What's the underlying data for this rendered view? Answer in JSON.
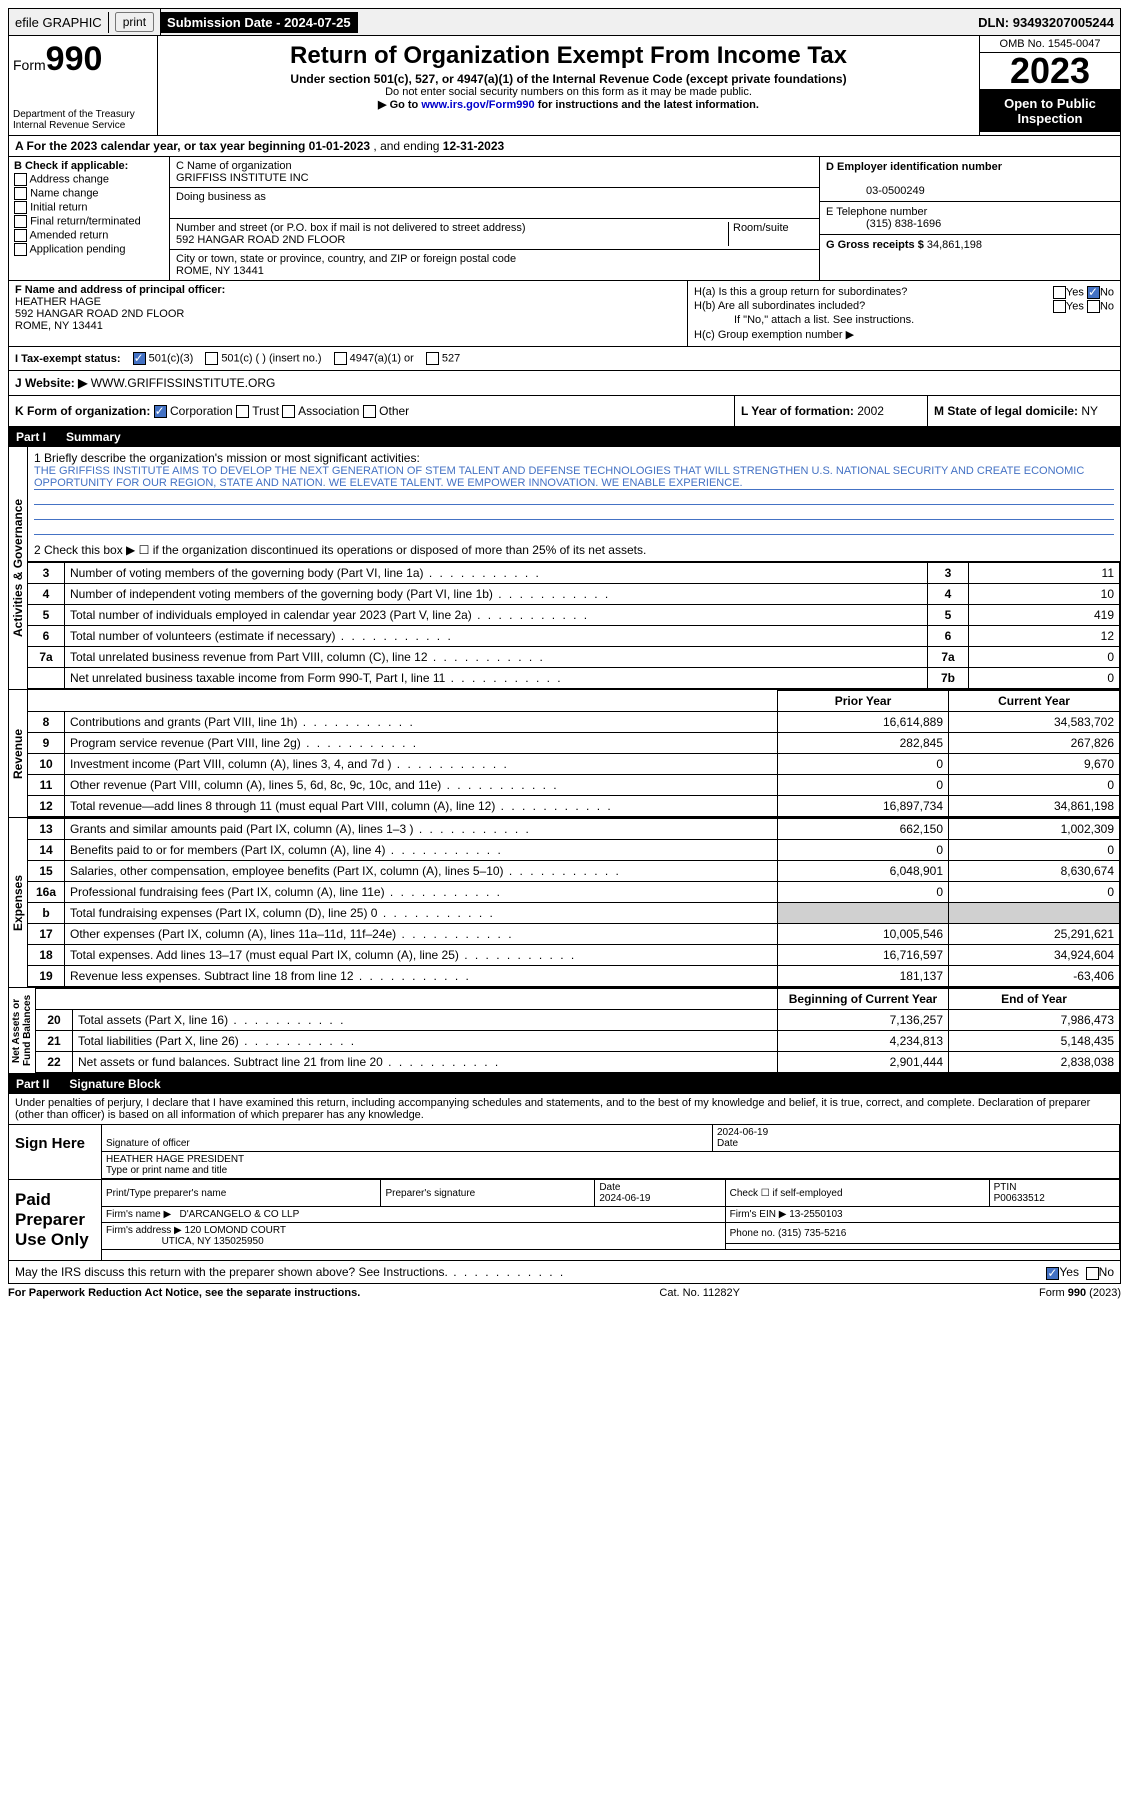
{
  "topbar": {
    "efile": "efile GRAPHIC",
    "print": "print",
    "sub_label": "Submission Date - ",
    "sub_date": "2024-07-25",
    "dln_label": "DLN: ",
    "dln": "93493207005244"
  },
  "header": {
    "form_word": "Form",
    "form_num": "990",
    "dept": "Department of the Treasury",
    "irs": "Internal Revenue Service",
    "title": "Return of Organization Exempt From Income Tax",
    "subtitle": "Under section 501(c), 527, or 4947(a)(1) of the Internal Revenue Code (except private foundations)",
    "ssn_note": "Do not enter social security numbers on this form as it may be made public.",
    "goto": "Go to ",
    "goto_link": "www.irs.gov/Form990",
    "goto_after": " for instructions and the latest information.",
    "omb": "OMB No. 1545-0047",
    "year": "2023",
    "inspection": "Open to Public Inspection"
  },
  "rowA": {
    "label": "A For the 2023 calendar year, or tax year beginning ",
    "begin": "01-01-2023",
    "mid": " , and ending ",
    "end": "12-31-2023"
  },
  "colB": {
    "header": "B Check if applicable:",
    "opts": [
      "Address change",
      "Name change",
      "Initial return",
      "Final return/terminated",
      "Amended return",
      "Application pending"
    ]
  },
  "colC": {
    "name_label": "C Name of organization",
    "name": "GRIFFISS INSTITUTE INC",
    "dba_label": "Doing business as",
    "dba": "",
    "street_label": "Number and street (or P.O. box if mail is not delivered to street address)",
    "street": "592 HANGAR ROAD 2ND FLOOR",
    "room_label": "Room/suite",
    "city_label": "City or town, state or province, country, and ZIP or foreign postal code",
    "city": "ROME, NY  13441"
  },
  "colD": {
    "ein_label": "D Employer identification number",
    "ein": "03-0500249",
    "tel_label": "E Telephone number",
    "tel": "(315) 838-1696",
    "gross_label": "G Gross receipts $ ",
    "gross": "34,861,198"
  },
  "colF": {
    "label": "F Name and address of principal officer:",
    "name": "HEATHER HAGE",
    "addr1": "592 HANGAR ROAD 2ND FLOOR",
    "addr2": "ROME, NY  13441"
  },
  "colH": {
    "ha": "H(a)  Is this a group return for subordinates?",
    "hb": "H(b)  Are all subordinates included?",
    "hb_note": "If \"No,\" attach a list. See instructions.",
    "hc": "H(c)  Group exemption number ▶",
    "yes": "Yes",
    "no": "No"
  },
  "rowI": {
    "label": "I    Tax-exempt status:",
    "opt1": "501(c)(3)",
    "opt2": "501(c) (   ) (insert no.)",
    "opt3": "4947(a)(1) or",
    "opt4": "527"
  },
  "rowJ": {
    "label": "J    Website: ▶",
    "value": "WWW.GRIFFISSINSTITUTE.ORG"
  },
  "rowK": {
    "label": "K Form of organization:",
    "opts": [
      "Corporation",
      "Trust",
      "Association",
      "Other"
    ]
  },
  "rowL": {
    "label": "L Year of formation: ",
    "value": "2002"
  },
  "rowM": {
    "label": "M State of legal domicile: ",
    "value": "NY"
  },
  "part1": {
    "label": "Part I",
    "title": "Summary"
  },
  "mission": {
    "q": "1   Briefly describe the organization's mission or most significant activities:",
    "text": "THE GRIFFISS INSTITUTE AIMS TO DEVELOP THE NEXT GENERATION OF STEM TALENT AND DEFENSE TECHNOLOGIES THAT WILL STRENGTHEN U.S. NATIONAL SECURITY AND CREATE ECONOMIC OPPORTUNITY FOR OUR REGION, STATE AND NATION. WE ELEVATE TALENT. WE EMPOWER INNOVATION. WE ENABLE EXPERIENCE.",
    "q2": "2   Check this box ▶ ☐ if the organization discontinued its operations or disposed of more than 25% of its net assets."
  },
  "gov_rows": [
    {
      "n": "3",
      "desc": "Number of voting members of the governing body (Part VI, line 1a)",
      "box": "3",
      "val": "11"
    },
    {
      "n": "4",
      "desc": "Number of independent voting members of the governing body (Part VI, line 1b)",
      "box": "4",
      "val": "10"
    },
    {
      "n": "5",
      "desc": "Total number of individuals employed in calendar year 2023 (Part V, line 2a)",
      "box": "5",
      "val": "419"
    },
    {
      "n": "6",
      "desc": "Total number of volunteers (estimate if necessary)",
      "box": "6",
      "val": "12"
    },
    {
      "n": "7a",
      "desc": "Total unrelated business revenue from Part VIII, column (C), line 12",
      "box": "7a",
      "val": "0"
    },
    {
      "n": "",
      "desc": "Net unrelated business taxable income from Form 990-T, Part I, line 11",
      "box": "7b",
      "val": "0"
    }
  ],
  "fin_headers": {
    "prior": "Prior Year",
    "current": "Current Year"
  },
  "revenue_rows": [
    {
      "n": "8",
      "desc": "Contributions and grants (Part VIII, line 1h)",
      "p": "16,614,889",
      "c": "34,583,702"
    },
    {
      "n": "9",
      "desc": "Program service revenue (Part VIII, line 2g)",
      "p": "282,845",
      "c": "267,826"
    },
    {
      "n": "10",
      "desc": "Investment income (Part VIII, column (A), lines 3, 4, and 7d )",
      "p": "0",
      "c": "9,670"
    },
    {
      "n": "11",
      "desc": "Other revenue (Part VIII, column (A), lines 5, 6d, 8c, 9c, 10c, and 11e)",
      "p": "0",
      "c": "0"
    },
    {
      "n": "12",
      "desc": "Total revenue—add lines 8 through 11 (must equal Part VIII, column (A), line 12)",
      "p": "16,897,734",
      "c": "34,861,198"
    }
  ],
  "expense_rows": [
    {
      "n": "13",
      "desc": "Grants and similar amounts paid (Part IX, column (A), lines 1–3 )",
      "p": "662,150",
      "c": "1,002,309"
    },
    {
      "n": "14",
      "desc": "Benefits paid to or for members (Part IX, column (A), line 4)",
      "p": "0",
      "c": "0"
    },
    {
      "n": "15",
      "desc": "Salaries, other compensation, employee benefits (Part IX, column (A), lines 5–10)",
      "p": "6,048,901",
      "c": "8,630,674"
    },
    {
      "n": "16a",
      "desc": "Professional fundraising fees (Part IX, column (A), line 11e)",
      "p": "0",
      "c": "0"
    },
    {
      "n": "b",
      "desc": "Total fundraising expenses (Part IX, column (D), line 25) 0",
      "p": "",
      "c": "",
      "grey": true
    },
    {
      "n": "17",
      "desc": "Other expenses (Part IX, column (A), lines 11a–11d, 11f–24e)",
      "p": "10,005,546",
      "c": "25,291,621"
    },
    {
      "n": "18",
      "desc": "Total expenses. Add lines 13–17 (must equal Part IX, column (A), line 25)",
      "p": "16,716,597",
      "c": "34,924,604"
    },
    {
      "n": "19",
      "desc": "Revenue less expenses. Subtract line 18 from line 12",
      "p": "181,137",
      "c": "-63,406"
    }
  ],
  "net_headers": {
    "begin": "Beginning of Current Year",
    "end": "End of Year"
  },
  "net_rows": [
    {
      "n": "20",
      "desc": "Total assets (Part X, line 16)",
      "p": "7,136,257",
      "c": "7,986,473"
    },
    {
      "n": "21",
      "desc": "Total liabilities (Part X, line 26)",
      "p": "4,234,813",
      "c": "5,148,435"
    },
    {
      "n": "22",
      "desc": "Net assets or fund balances. Subtract line 21 from line 20",
      "p": "2,901,444",
      "c": "2,838,038"
    }
  ],
  "part2": {
    "label": "Part II",
    "title": "Signature Block"
  },
  "perjury": "Under penalties of perjury, I declare that I have examined this return, including accompanying schedules and statements, and to the best of my knowledge and belief, it is true, correct, and complete. Declaration of preparer (other than officer) is based on all information of which preparer has any knowledge.",
  "sign": {
    "here": "Sign Here",
    "sig_label": "Signature of officer",
    "officer": "HEATHER HAGE  PRESIDENT",
    "type_label": "Type or print name and title",
    "date_label": "Date",
    "date": "2024-06-19"
  },
  "paid": {
    "label": "Paid Preparer Use Only",
    "name_label": "Print/Type preparer's name",
    "sig_label": "Preparer's signature",
    "date_label": "Date",
    "date": "2024-06-19",
    "check_label": "Check ☐ if self-employed",
    "ptin_label": "PTIN",
    "ptin": "P00633512",
    "firm_name_label": "Firm's name ▶",
    "firm_name": "D'ARCANGELO & CO LLP",
    "firm_ein_label": "Firm's EIN ▶",
    "firm_ein": "13-2550103",
    "firm_addr_label": "Firm's address ▶",
    "firm_addr1": "120 LOMOND COURT",
    "firm_addr2": "UTICA, NY  135025950",
    "phone_label": "Phone no. ",
    "phone": "(315) 735-5216"
  },
  "discuss": {
    "q": "May the IRS discuss this return with the preparer shown above? See Instructions.",
    "yes": "Yes",
    "no": "No"
  },
  "footer": {
    "pra": "For Paperwork Reduction Act Notice, see the separate instructions.",
    "cat": "Cat. No. 11282Y",
    "form": "Form 990 (2023)"
  }
}
